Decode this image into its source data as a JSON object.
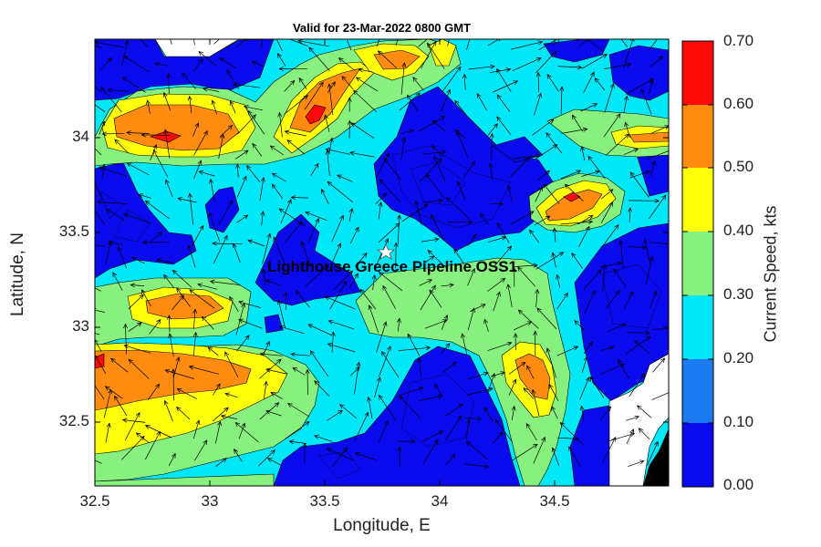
{
  "title": "Valid for 23-Mar-2022 0800 GMT",
  "site_label": "Lighthouse Greece Pipeline  OSS1",
  "xlabel": "Longitude, E",
  "ylabel": "Latitude, N",
  "colorbar_label": "Current Speed, kts",
  "x_ticks": [
    "32.5",
    "33",
    "33.5",
    "34",
    "34.5"
  ],
  "y_ticks": [
    "34",
    "33.5",
    "33",
    "32.5"
  ],
  "colorbar_ticks": [
    "0.70",
    "0.60",
    "0.50",
    "0.40",
    "0.30",
    "0.20",
    "0.10",
    "0.00"
  ],
  "colors": {
    "band_000_010": "#0a0aef",
    "band_010_020": "#1c7bf0",
    "band_020_030": "#00e8f8",
    "band_030_040": "#88f07e",
    "band_040_050": "#ffff0a",
    "band_050_060": "#ff8c10",
    "band_060_070": "#ff0a0a",
    "land": "#ffffff"
  }
}
